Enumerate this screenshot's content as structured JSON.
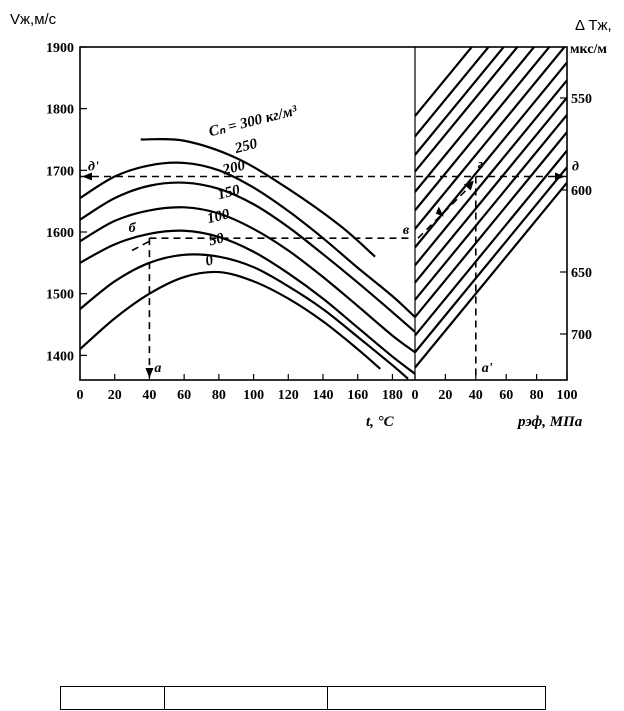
{
  "chart_data": {
    "type": "line",
    "left_panel": {
      "xlabel": "t, °C",
      "ylabel": "Vж,м/с",
      "x_ticks": [
        "0",
        "20",
        "40",
        "60",
        "80",
        "100",
        "120",
        "140",
        "160",
        "180"
      ],
      "y_ticks": [
        "1400",
        "1500",
        "1600",
        "1700",
        "1800",
        "1900"
      ],
      "xlim": [
        0,
        193
      ],
      "ylim": [
        1360,
        1900
      ],
      "series_label_prefix": "Cₙ = ",
      "series_label_unit": " кг/м³",
      "series": [
        {
          "name": "300",
          "x": [
            35,
            60,
            90,
            120,
            150,
            170
          ],
          "y": [
            1750,
            1748,
            1720,
            1670,
            1610,
            1560
          ]
        },
        {
          "name": "250",
          "x": [
            0,
            20,
            40,
            60,
            80,
            100,
            120,
            140,
            160,
            180,
            193
          ],
          "y": [
            1655,
            1690,
            1708,
            1712,
            1700,
            1672,
            1634,
            1590,
            1542,
            1496,
            1462
          ]
        },
        {
          "name": "200",
          "x": [
            0,
            20,
            40,
            60,
            80,
            100,
            120,
            140,
            160,
            180,
            193
          ],
          "y": [
            1620,
            1655,
            1675,
            1680,
            1670,
            1645,
            1608,
            1564,
            1518,
            1470,
            1438
          ]
        },
        {
          "name": "150",
          "x": [
            0,
            20,
            40,
            60,
            80,
            100,
            120,
            140,
            160,
            180,
            193
          ],
          "y": [
            1585,
            1618,
            1635,
            1640,
            1630,
            1605,
            1570,
            1527,
            1480,
            1432,
            1405
          ]
        },
        {
          "name": "100",
          "x": [
            0,
            20,
            40,
            60,
            80,
            100,
            120,
            140,
            160,
            180,
            193
          ],
          "y": [
            1550,
            1580,
            1597,
            1602,
            1592,
            1568,
            1533,
            1492,
            1445,
            1398,
            1370
          ]
        },
        {
          "name": "50",
          "x": [
            0,
            20,
            40,
            60,
            80,
            100,
            120,
            140,
            160,
            180,
            189
          ],
          "y": [
            1475,
            1520,
            1550,
            1563,
            1560,
            1543,
            1512,
            1475,
            1430,
            1384,
            1362
          ]
        },
        {
          "name": "0",
          "x": [
            0,
            20,
            40,
            60,
            80,
            100,
            120,
            140,
            160,
            173
          ],
          "y": [
            1410,
            1460,
            1500,
            1527,
            1535,
            1520,
            1492,
            1455,
            1410,
            1378
          ]
        }
      ]
    },
    "right_panel": {
      "xlabel": "pэф, МПа",
      "y2label_top": "Δ Тж,",
      "y2label_unit": "мкс/м",
      "x_ticks": [
        "0",
        "20",
        "40",
        "60",
        "80",
        "100"
      ],
      "y2_ticks": [
        "550",
        "600",
        "650",
        "700"
      ],
      "xlim": [
        0,
        100
      ],
      "lines_start_y": [
        1380,
        1405,
        1432,
        1462,
        1490,
        1518,
        1546,
        1575,
        1605,
        1635,
        1665,
        1698,
        1725,
        1755,
        1788
      ],
      "slope_per_100": 300
    },
    "annotations": {
      "dashed_horizontal_upper": {
        "y": 1690,
        "left_label": "д'",
        "right_label": "д"
      },
      "dashed_horizontal_lower": {
        "y": 1590,
        "label_start": "б",
        "label_end": "в"
      },
      "dashed_vertical_left": {
        "x": 40,
        "bottom_label": "а"
      },
      "dashed_vertical_right": {
        "x": 40,
        "bottom_label": "а'",
        "top_label": "г"
      }
    }
  }
}
